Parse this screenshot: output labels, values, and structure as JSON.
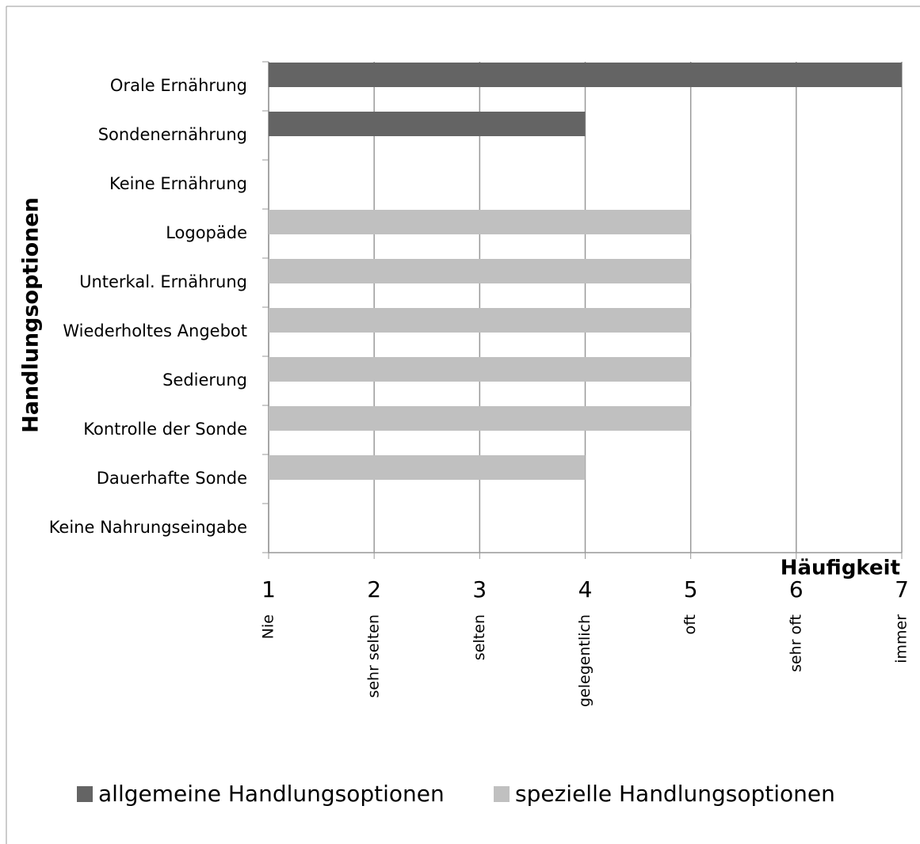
{
  "chart_data": {
    "type": "bar",
    "orientation": "horizontal",
    "x_label": "Häufigkeit",
    "y_label": "Handlungsoptionen",
    "categories": [
      "Orale Ernährung",
      "Sondenernährung",
      "Keine Ernährung",
      "Logopäde",
      "Unterkal. Ernährung",
      "Wiederholtes Angebot",
      "Sedierung",
      "Kontrolle der Sonde",
      "Dauerhafte Sonde",
      "Keine Nahrungseingabe"
    ],
    "series": [
      {
        "name": "allgemeine Handlungsoptionen",
        "color": "#646464",
        "values": [
          7,
          4,
          null,
          null,
          null,
          null,
          null,
          null,
          null,
          null
        ]
      },
      {
        "name": "spezielle Handlungsoptionen",
        "color": "#c0c0c0",
        "values": [
          null,
          null,
          null,
          5,
          5,
          5,
          5,
          5,
          4,
          null
        ]
      }
    ],
    "xlim": [
      1,
      7
    ],
    "xticks": [
      1,
      2,
      3,
      4,
      5,
      6,
      7
    ],
    "xtick_descriptions": [
      "Nie",
      "sehr selten",
      "selten",
      "gelegentlich",
      "oft",
      "sehr oft",
      "immer"
    ],
    "grid": true,
    "legend": "bottom"
  }
}
